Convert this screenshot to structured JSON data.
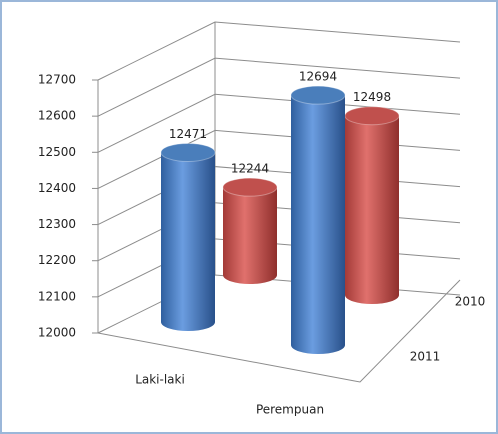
{
  "chart_data": {
    "type": "bar3d",
    "categories": [
      "Laki-laki",
      "Perempuan"
    ],
    "series": [
      {
        "name": "2010",
        "color": "#c0504d",
        "values": [
          12244,
          12498
        ]
      },
      {
        "name": "2011",
        "color": "#4a7ebb",
        "values": [
          12471,
          12694
        ]
      }
    ],
    "ylim": [
      12000,
      12700
    ],
    "yticks": [
      12000,
      12100,
      12200,
      12300,
      12400,
      12500,
      12600,
      12700
    ],
    "grid": true
  }
}
